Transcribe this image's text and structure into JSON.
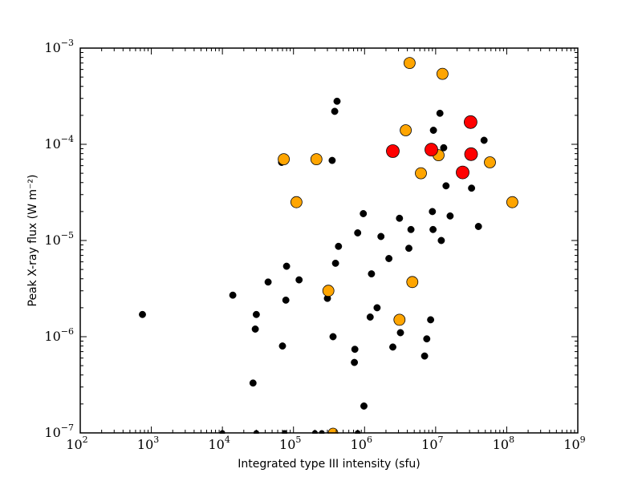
{
  "chart_data": {
    "type": "scatter",
    "title": "",
    "xlabel": "Integrated type III intensity (sfu)",
    "ylabel": "Peak X-ray flux (W m⁻²)",
    "xscale": "log",
    "yscale": "log",
    "xlim": [
      100,
      1000000000
    ],
    "ylim": [
      1e-07,
      0.001
    ],
    "x_tick_exponents": [
      2,
      3,
      4,
      5,
      6,
      7,
      8,
      9
    ],
    "y_tick_exponents": [
      -7,
      -6,
      -5,
      -4,
      -3
    ],
    "tick_base": "10",
    "grid": false,
    "legend": "none",
    "series": [
      {
        "color": "#000000",
        "marker": "small-black-dot",
        "points": [
          [
            750,
            1.7e-06
          ],
          [
            14000,
            2.7e-06
          ],
          [
            27000,
            3.3e-07
          ],
          [
            29000,
            1.2e-06
          ],
          [
            30000,
            1.7e-06
          ],
          [
            44000,
            3.7e-06
          ],
          [
            68000,
            6.5e-05
          ],
          [
            70000,
            8e-07
          ],
          [
            78000,
            2.4e-06
          ],
          [
            80000,
            5.4e-06
          ],
          [
            120000,
            3.9e-06
          ],
          [
            300000,
            2.5e-06
          ],
          [
            350000,
            6.8e-05
          ],
          [
            360000,
            1e-06
          ],
          [
            380000,
            0.00022
          ],
          [
            390000,
            5.8e-06
          ],
          [
            410000,
            0.00028
          ],
          [
            430000,
            8.7e-06
          ],
          [
            720000,
            5.4e-07
          ],
          [
            730000,
            7.4e-07
          ],
          [
            800000,
            1.2e-05
          ],
          [
            960000,
            1.9e-05
          ],
          [
            980000,
            1.9e-07
          ],
          [
            1200000,
            1.6e-06
          ],
          [
            1250000,
            4.5e-06
          ],
          [
            1500000,
            2e-06
          ],
          [
            1700000,
            1.1e-05
          ],
          [
            2200000,
            6.5e-06
          ],
          [
            2500000,
            7.8e-07
          ],
          [
            3100000,
            1.7e-05
          ],
          [
            3200000,
            1.1e-06
          ],
          [
            4200000,
            8.3e-06
          ],
          [
            4500000,
            1.3e-05
          ],
          [
            7000000,
            6.3e-07
          ],
          [
            7500000,
            9.5e-07
          ],
          [
            8500000,
            1.5e-06
          ],
          [
            9000000,
            2e-05
          ],
          [
            9200000,
            1.3e-05
          ],
          [
            9300000,
            0.00014
          ],
          [
            11500000,
            0.00021
          ],
          [
            12000000,
            1e-05
          ],
          [
            13000000,
            9.2e-05
          ],
          [
            14000000,
            3.7e-05
          ],
          [
            16000000,
            1.8e-05
          ],
          [
            32000000,
            3.5e-05
          ],
          [
            40000000,
            1.4e-05
          ],
          [
            48000000,
            0.00011
          ]
        ]
      },
      {
        "color": "#FFA500",
        "marker": "large-orange-circle",
        "points": [
          [
            73000,
            7e-05
          ],
          [
            110000,
            2.5e-05
          ],
          [
            210000,
            7e-05
          ],
          [
            310000,
            3e-06
          ],
          [
            3100000,
            1.5e-06
          ],
          [
            3800000,
            0.00014
          ],
          [
            4300000,
            0.0007
          ],
          [
            4700000,
            3.7e-06
          ],
          [
            6200000,
            5e-05
          ],
          [
            11000000,
            7.7e-05
          ],
          [
            12500000,
            0.00054
          ],
          [
            58000000,
            6.5e-05
          ],
          [
            120000000,
            2.5e-05
          ]
        ]
      },
      {
        "color": "#FF0000",
        "marker": "large-red-circle",
        "points": [
          [
            2500000,
            8.5e-05
          ],
          [
            8700000,
            8.8e-05
          ],
          [
            24000000,
            5.1e-05
          ],
          [
            31000000,
            0.00017
          ],
          [
            31500000,
            7.9e-05
          ]
        ]
      }
    ],
    "clipped_points": {
      "color": "#000000",
      "description": "points at bottom edge",
      "x": [
        10000,
        30000,
        75000,
        200000,
        250000,
        800000
      ],
      "orange_x": [
        360000
      ]
    }
  }
}
